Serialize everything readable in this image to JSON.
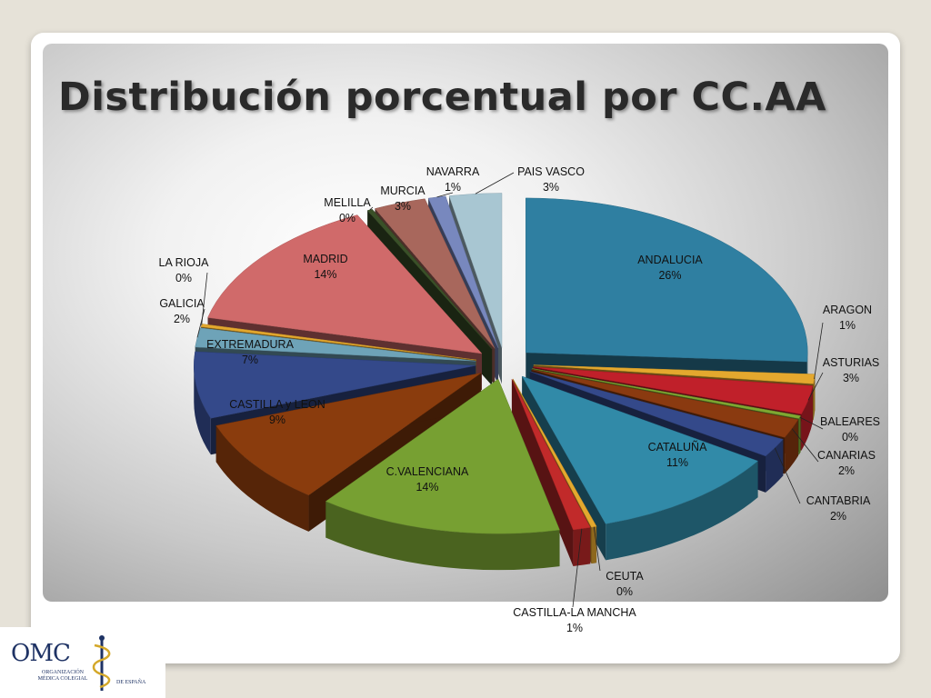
{
  "slide": {
    "title": "Distribución porcentual por CC.AA"
  },
  "logo": {
    "abbr": "OMC",
    "subtitle": "ORGANIZACIÓN MÉDICA COLEGIAL",
    "subtitle2": "DE ESPAÑA"
  },
  "chart_data": {
    "type": "pie",
    "title": "Distribución porcentual por CC.AA",
    "exploded": true,
    "style": "3d",
    "slices": [
      {
        "label": "ANDALUCIA",
        "pct_label": "26%",
        "value": 26,
        "color": "#2f7fa1"
      },
      {
        "label": "ARAGON",
        "pct_label": "1%",
        "value": 1,
        "color": "#e4a82e"
      },
      {
        "label": "ASTURIAS",
        "pct_label": "3%",
        "value": 3,
        "color": "#c0202a"
      },
      {
        "label": "BALEARES",
        "pct_label": "0%",
        "value": 0.3,
        "color": "#7fa832"
      },
      {
        "label": "CANARIAS",
        "pct_label": "2%",
        "value": 2,
        "color": "#8a3a10"
      },
      {
        "label": "CANTABRIA",
        "pct_label": "2%",
        "value": 2,
        "color": "#34498a"
      },
      {
        "label": "CATALUÑA",
        "pct_label": "11%",
        "value": 11,
        "color": "#318aa8"
      },
      {
        "label": "CEUTA",
        "pct_label": "0%",
        "value": 0.3,
        "color": "#e4a82e"
      },
      {
        "label": "CASTILLA-LA MANCHA",
        "pct_label": "1%",
        "value": 1,
        "color": "#c12a2a"
      },
      {
        "label": "C.VALENCIANA",
        "pct_label": "14%",
        "value": 14,
        "color": "#77a032"
      },
      {
        "label": "CASTILLA y LEON",
        "pct_label": "9%",
        "value": 9,
        "color": "#8a3c0d"
      },
      {
        "label": "EXTREMADURA",
        "pct_label": "7%",
        "value": 7,
        "color": "#34498a"
      },
      {
        "label": "GALICIA",
        "pct_label": "2%",
        "value": 2,
        "color": "#6ea3b8"
      },
      {
        "label": "LA RIOJA",
        "pct_label": "0%",
        "value": 0.3,
        "color": "#e4a82e"
      },
      {
        "label": "MADRID",
        "pct_label": "14%",
        "value": 14,
        "color": "#d06a6a"
      },
      {
        "label": "MELILLA",
        "pct_label": "0%",
        "value": 0.3,
        "color": "#3a5028"
      },
      {
        "label": "MURCIA",
        "pct_label": "3%",
        "value": 3,
        "color": "#a8675c"
      },
      {
        "label": "NAVARRA",
        "pct_label": "1%",
        "value": 1,
        "color": "#7888be"
      },
      {
        "label": "PAIS VASCO",
        "pct_label": "3%",
        "value": 3,
        "color": "#a8c6d2"
      }
    ]
  }
}
